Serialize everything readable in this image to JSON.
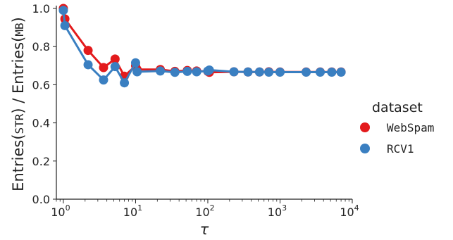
{
  "chart_data": {
    "type": "line",
    "x_scale": "log",
    "xlim": [
      0.8,
      10000
    ],
    "ylim": [
      0.0,
      1.0
    ],
    "xlabel": "τ",
    "ylabel": {
      "prefix": "Entries(",
      "num_sub": "STR",
      "mid": ") / Entries(",
      "den_sub": "MB",
      "suffix": ")"
    },
    "x_ticks": [
      {
        "value": 1,
        "base": "10",
        "exp": "0"
      },
      {
        "value": 10,
        "base": "10",
        "exp": "1"
      },
      {
        "value": 100,
        "base": "10",
        "exp": "2"
      },
      {
        "value": 1000,
        "base": "10",
        "exp": "3"
      },
      {
        "value": 10000,
        "base": "10",
        "exp": "4"
      }
    ],
    "y_ticks": [
      "0.0",
      "0.2",
      "0.4",
      "0.6",
      "0.8",
      "1.0"
    ],
    "legend": {
      "title": "dataset",
      "placement": "right"
    },
    "series": [
      {
        "name": "WebSpam",
        "color": "#e31a1c",
        "x": [
          1,
          1.05,
          2.2,
          3.6,
          5.2,
          7,
          10,
          10.5,
          22,
          35,
          52,
          70,
          100,
          105,
          230,
          360,
          520,
          700,
          1000,
          2300,
          3600,
          5200,
          7000
        ],
        "y": [
          1.0,
          0.945,
          0.78,
          0.69,
          0.735,
          0.645,
          0.7,
          0.68,
          0.68,
          0.67,
          0.675,
          0.672,
          0.67,
          0.665,
          0.668,
          0.667,
          0.667,
          0.668,
          0.667,
          0.667,
          0.667,
          0.667,
          0.667
        ]
      },
      {
        "name": "RCV1",
        "color": "#3a7fc1",
        "x": [
          1,
          1.05,
          2.2,
          3.6,
          5.2,
          7,
          10,
          10.5,
          22,
          35,
          52,
          70,
          100,
          105,
          230,
          360,
          520,
          700,
          1000,
          2300,
          3600,
          5200,
          7000
        ],
        "y": [
          0.99,
          0.91,
          0.705,
          0.625,
          0.695,
          0.61,
          0.715,
          0.668,
          0.672,
          0.665,
          0.67,
          0.668,
          0.672,
          0.677,
          0.668,
          0.667,
          0.667,
          0.666,
          0.666,
          0.666,
          0.666,
          0.666,
          0.666
        ]
      }
    ]
  }
}
